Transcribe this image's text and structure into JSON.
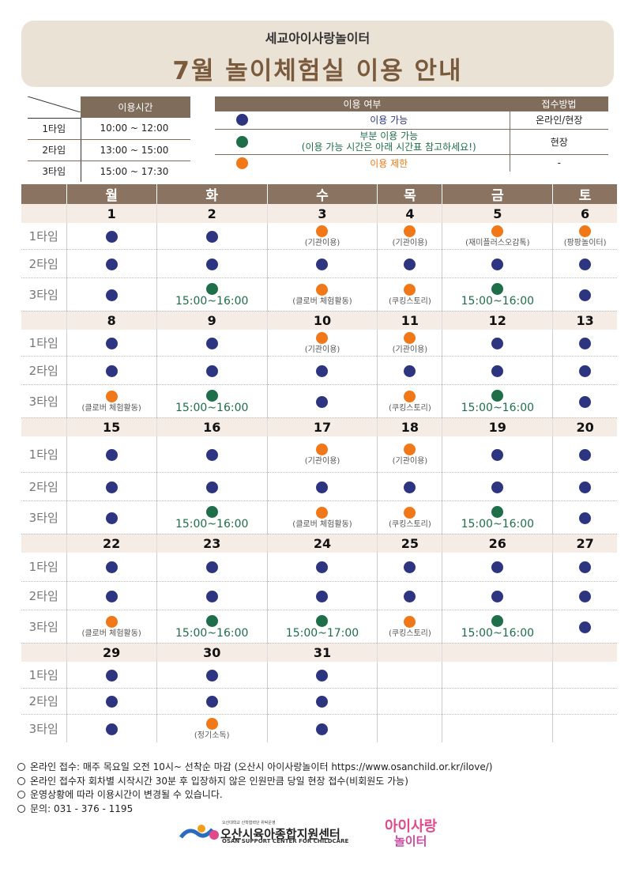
{
  "header": {
    "subtitle": "세교아이사랑놀이터",
    "title": "7월 놀이체험실 이용 안내"
  },
  "time_table": {
    "header": "이용시간",
    "rows": [
      {
        "label": "1타임",
        "time": "10:00 ~ 12:00"
      },
      {
        "label": "2타임",
        "time": "13:00 ~ 15:00"
      },
      {
        "label": "3타임",
        "time": "15:00 ~ 17:30"
      }
    ]
  },
  "legend": {
    "header_use": "이용 여부",
    "header_method": "접수방법",
    "rows": [
      {
        "color": "navy",
        "text": "이용 가능",
        "text2": "",
        "method": "온라인/현장"
      },
      {
        "color": "green",
        "text": "부분 이용 가능",
        "text2": "(이용 가능 시간은 아래 시간표 참고하세요!)",
        "method": "현장"
      },
      {
        "color": "orange",
        "text": "이용 제한",
        "text2": "",
        "method": "-"
      }
    ]
  },
  "colors": {
    "navy": "#2e3580",
    "green": "#1e6e4a",
    "orange": "#f07818",
    "header_brown": "#8b7361"
  },
  "days": [
    "월",
    "화",
    "수",
    "목",
    "금",
    "토"
  ],
  "slot_labels": [
    "1타임",
    "2타임",
    "3타임"
  ],
  "weeks": [
    {
      "dates": [
        "1",
        "2",
        "3",
        "4",
        "5",
        "6"
      ],
      "slots": [
        [
          {
            "c": "navy"
          },
          {
            "c": "navy"
          },
          {
            "c": "orange",
            "n": "(기관이용)"
          },
          {
            "c": "orange",
            "n": "(기관이용)"
          },
          {
            "c": "orange",
            "n": "(재미플러스오감톡)"
          },
          {
            "c": "orange",
            "n": "(팡팡놀이터)"
          }
        ],
        [
          {
            "c": "navy"
          },
          {
            "c": "navy"
          },
          {
            "c": "navy"
          },
          {
            "c": "navy"
          },
          {
            "c": "navy"
          },
          {
            "c": "navy"
          }
        ],
        [
          {
            "c": "navy"
          },
          {
            "c": "green",
            "t": "15:00~16:00"
          },
          {
            "c": "orange",
            "n": "(클로버 체험활동)"
          },
          {
            "c": "orange",
            "n": "(쿠킹스토리)"
          },
          {
            "c": "green",
            "t": "15:00~16:00"
          },
          {
            "c": "navy"
          }
        ]
      ]
    },
    {
      "dates": [
        "8",
        "9",
        "10",
        "11",
        "12",
        "13"
      ],
      "slots": [
        [
          {
            "c": "navy"
          },
          {
            "c": "navy"
          },
          {
            "c": "orange",
            "n": "(기관이용)"
          },
          {
            "c": "orange",
            "n": "(기관이용)"
          },
          {
            "c": "navy"
          },
          {
            "c": "navy"
          }
        ],
        [
          {
            "c": "navy"
          },
          {
            "c": "navy"
          },
          {
            "c": "navy"
          },
          {
            "c": "navy"
          },
          {
            "c": "navy"
          },
          {
            "c": "navy"
          }
        ],
        [
          {
            "c": "orange",
            "n": "(클로버 체험활동)"
          },
          {
            "c": "green",
            "t": "15:00~16:00"
          },
          {
            "c": "navy"
          },
          {
            "c": "orange",
            "n": "(쿠킹스토리)"
          },
          {
            "c": "green",
            "t": "15:00~16:00"
          },
          {
            "c": "navy"
          }
        ]
      ]
    },
    {
      "dates": [
        "15",
        "16",
        "17",
        "18",
        "19",
        "20"
      ],
      "slots": [
        [
          {
            "c": "navy"
          },
          {
            "c": "navy"
          },
          {
            "c": "orange",
            "n": "(기관이용)"
          },
          {
            "c": "orange",
            "n": "(기관이용)"
          },
          {
            "c": "navy"
          },
          {
            "c": "navy"
          }
        ],
        [
          {
            "c": "navy"
          },
          {
            "c": "navy"
          },
          {
            "c": "navy"
          },
          {
            "c": "navy"
          },
          {
            "c": "navy"
          },
          {
            "c": "navy"
          }
        ],
        [
          {
            "c": "navy"
          },
          {
            "c": "green",
            "t": "15:00~16:00"
          },
          {
            "c": "orange",
            "n": "(클로버 체험활동)"
          },
          {
            "c": "orange",
            "n": "(쿠킹스토리)"
          },
          {
            "c": "green",
            "t": "15:00~16:00"
          },
          {
            "c": "navy"
          }
        ]
      ]
    },
    {
      "dates": [
        "22",
        "23",
        "24",
        "25",
        "26",
        "27"
      ],
      "slots": [
        [
          {
            "c": "navy"
          },
          {
            "c": "navy"
          },
          {
            "c": "navy"
          },
          {
            "c": "navy"
          },
          {
            "c": "navy"
          },
          {
            "c": "navy"
          }
        ],
        [
          {
            "c": "navy"
          },
          {
            "c": "navy"
          },
          {
            "c": "navy"
          },
          {
            "c": "navy"
          },
          {
            "c": "navy"
          },
          {
            "c": "navy"
          }
        ],
        [
          {
            "c": "orange",
            "n": "(클로버 체험활동)"
          },
          {
            "c": "green",
            "t": "15:00~16:00"
          },
          {
            "c": "green",
            "t": "15:00~17:00"
          },
          {
            "c": "orange",
            "n": "(쿠킹스토리)"
          },
          {
            "c": "green",
            "t": "15:00~16:00"
          },
          {
            "c": "navy"
          }
        ]
      ]
    },
    {
      "dates": [
        "29",
        "30",
        "31",
        "",
        "",
        ""
      ],
      "slots": [
        [
          {
            "c": "navy"
          },
          {
            "c": "navy"
          },
          {
            "c": "navy"
          },
          {},
          {},
          {}
        ],
        [
          {
            "c": "navy"
          },
          {
            "c": "navy"
          },
          {
            "c": "navy"
          },
          {},
          {},
          {}
        ],
        [
          {
            "c": "navy"
          },
          {
            "c": "orange",
            "n": "(정기소독)"
          },
          {
            "c": "navy"
          },
          {},
          {},
          {}
        ]
      ]
    }
  ],
  "notes": [
    "온라인 접수: 매주 목요일 오전 10시~ 선착순 마감 (오산시 아이사랑놀이터 https://www.osanchild.or.kr/ilove/)",
    "온라인 접수자 회차별 시작시간 30분 후 입장하지 않은 인원만큼 당일 현장 접수(비회원도 가능)",
    "운영상황에 따라 이용시간이 변경될 수 있습니다.",
    "문의: 031 - 376 - 1195"
  ],
  "footer": {
    "org_small": "오산대학교 산학협력단 위탁운영",
    "org_name": "오산시육아종합지원센터",
    "org_en": "OSAN SUPPORT CENTER FOR CHILDCARE",
    "brand_top": "아이사랑",
    "brand_bottom": "놀이터"
  }
}
